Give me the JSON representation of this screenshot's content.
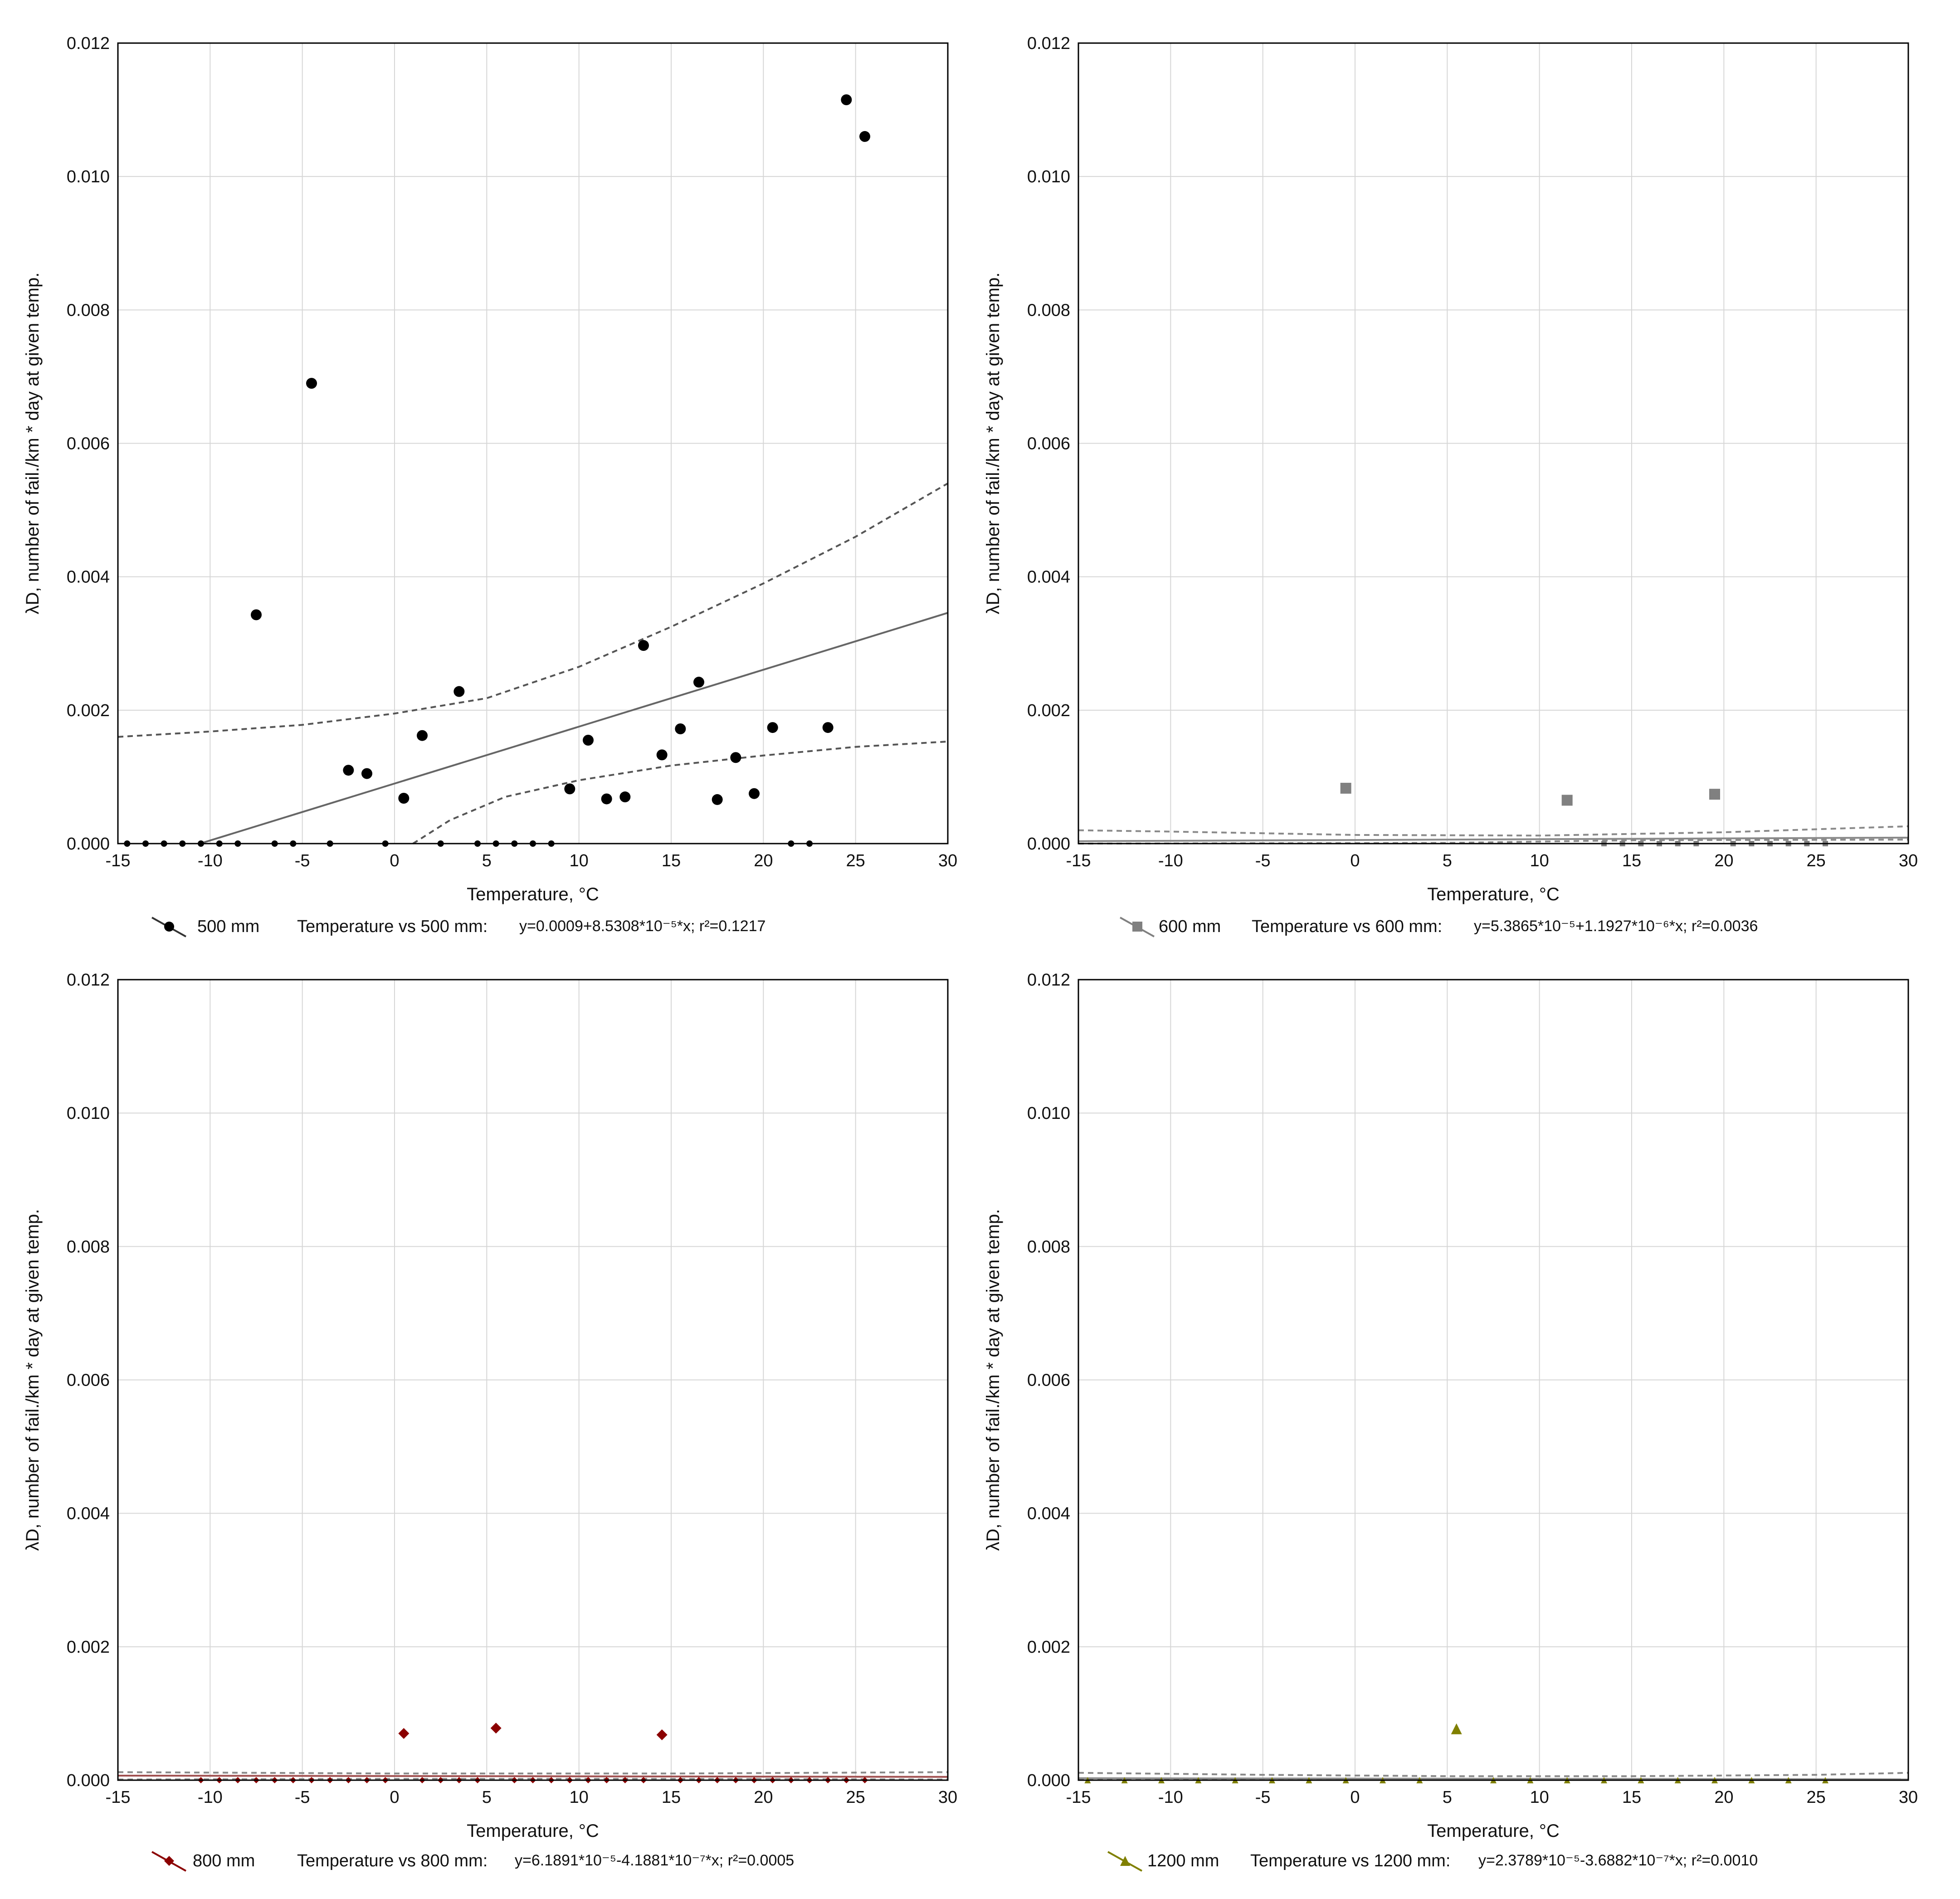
{
  "chart_data": [
    {
      "type": "scatter",
      "panel": "500 mm",
      "xlabel": "Temperature, °C",
      "ylabel": "λD, number of fail./km * day at given temp.",
      "xlim": [
        -15,
        30
      ],
      "ylim": [
        0,
        0.012
      ],
      "xticks": [
        -15,
        -10,
        -5,
        0,
        5,
        10,
        15,
        20,
        25,
        30
      ],
      "yticks": [
        "0.000",
        "0.002",
        "0.004",
        "0.006",
        "0.008",
        "0.010",
        "0.012"
      ],
      "grid": true,
      "marker": "circle",
      "color": "#000000",
      "legend": {
        "series": "500 mm",
        "fit_label": "Temperature vs 500 mm:",
        "equation": "y=0.0009+8.5308*10⁻⁵*x; r²=0.1217"
      },
      "points": [
        [
          -7.5,
          0.00343
        ],
        [
          -4.5,
          0.0069
        ],
        [
          -2.5,
          0.0011
        ],
        [
          -1.5,
          0.00105
        ],
        [
          0.5,
          0.00068
        ],
        [
          1.5,
          0.00162
        ],
        [
          3.5,
          0.00228
        ],
        [
          9.5,
          0.00082
        ],
        [
          10.5,
          0.00155
        ],
        [
          11.5,
          0.00067
        ],
        [
          12.5,
          0.0007
        ],
        [
          13.5,
          0.00297
        ],
        [
          14.5,
          0.00133
        ],
        [
          15.5,
          0.00172
        ],
        [
          16.5,
          0.00242
        ],
        [
          17.5,
          0.00066
        ],
        [
          18.5,
          0.00129
        ],
        [
          19.5,
          0.00075
        ],
        [
          20.5,
          0.00174
        ],
        [
          23.5,
          0.00174
        ],
        [
          24.5,
          0.01115
        ],
        [
          25.5,
          0.0106
        ],
        [
          -14.5,
          0
        ],
        [
          -13.5,
          0
        ],
        [
          -12.5,
          0
        ],
        [
          -11.5,
          0
        ],
        [
          -10.5,
          0
        ],
        [
          -9.5,
          0
        ],
        [
          -8.5,
          0
        ],
        [
          -6.5,
          0
        ],
        [
          -5.5,
          0
        ],
        [
          -3.5,
          0
        ],
        [
          -0.5,
          0
        ],
        [
          2.5,
          0
        ],
        [
          4.5,
          0
        ],
        [
          5.5,
          0
        ],
        [
          6.5,
          0
        ],
        [
          7.5,
          0
        ],
        [
          8.5,
          0
        ],
        [
          21.5,
          0
        ],
        [
          22.5,
          0
        ]
      ],
      "fit": {
        "intercept": 0.0009,
        "slope": 8.5308e-05
      },
      "confidence_upper": [
        [
          -15,
          0.0016
        ],
        [
          -10,
          0.00168
        ],
        [
          -5,
          0.00178
        ],
        [
          0,
          0.00195
        ],
        [
          5,
          0.00218
        ],
        [
          10,
          0.00265
        ],
        [
          15,
          0.00325
        ],
        [
          20,
          0.0039
        ],
        [
          25,
          0.0046
        ],
        [
          30,
          0.0054
        ]
      ],
      "confidence_lower": [
        [
          1,
          0
        ],
        [
          3,
          0.00035
        ],
        [
          6,
          0.0007
        ],
        [
          10,
          0.00095
        ],
        [
          15,
          0.00117
        ],
        [
          20,
          0.00132
        ],
        [
          25,
          0.00145
        ],
        [
          30,
          0.00153
        ]
      ]
    },
    {
      "type": "scatter",
      "panel": "600 mm",
      "xlabel": "Temperature, °C",
      "ylabel": "λD, number of fail./km * day at given temp.",
      "xlim": [
        -15,
        30
      ],
      "ylim": [
        0,
        0.012
      ],
      "xticks": [
        -15,
        -10,
        -5,
        0,
        5,
        10,
        15,
        20,
        25,
        30
      ],
      "yticks": [
        "0.000",
        "0.002",
        "0.004",
        "0.006",
        "0.008",
        "0.010",
        "0.012"
      ],
      "grid": true,
      "marker": "square",
      "color": "#808080",
      "legend": {
        "series": "600 mm",
        "fit_label": "Temperature vs 600 mm:",
        "equation": "y=5.3865*10⁻⁵+1.1927*10⁻⁶*x; r²=0.0036"
      },
      "points": [
        [
          -0.5,
          0.00083
        ],
        [
          11.5,
          0.00065
        ],
        [
          19.5,
          0.00074
        ],
        [
          13.5,
          0
        ],
        [
          14.5,
          0
        ],
        [
          15.5,
          0
        ],
        [
          16.5,
          0
        ],
        [
          17.5,
          0
        ],
        [
          18.5,
          0
        ],
        [
          20.5,
          0
        ],
        [
          21.5,
          0
        ],
        [
          22.5,
          0
        ],
        [
          23.5,
          0
        ],
        [
          24.5,
          0
        ],
        [
          25.5,
          0
        ]
      ],
      "fit": {
        "intercept": 5.3865e-05,
        "slope": 1.1927e-06
      },
      "confidence_upper": [
        [
          -15,
          0.0002
        ],
        [
          -10,
          0.00018
        ],
        [
          0,
          0.00013
        ],
        [
          10,
          0.00012
        ],
        [
          20,
          0.00017
        ],
        [
          30,
          0.00026
        ]
      ],
      "confidence_lower": [
        [
          -15,
          0
        ],
        [
          5,
          1e-05
        ],
        [
          15,
          5e-05
        ],
        [
          30,
          6e-05
        ]
      ]
    },
    {
      "type": "scatter",
      "panel": "800 mm",
      "xlabel": "Temperature, °C",
      "ylabel": "λD, number of fail./km * day at given temp.",
      "xlim": [
        -15,
        30
      ],
      "ylim": [
        0,
        0.012
      ],
      "xticks": [
        -15,
        -10,
        -5,
        0,
        5,
        10,
        15,
        20,
        25,
        30
      ],
      "yticks": [
        "0.000",
        "0.002",
        "0.004",
        "0.006",
        "0.008",
        "0.010",
        "0.012"
      ],
      "grid": true,
      "marker": "diamond",
      "color": "#8b0000",
      "legend": {
        "series": "800 mm",
        "fit_label": "Temperature vs 800 mm:",
        "equation": "y=6.1891*10⁻⁵-4.1881*10⁻⁷*x; r²=0.0005"
      },
      "points": [
        [
          0.5,
          0.0007
        ],
        [
          5.5,
          0.00078
        ],
        [
          14.5,
          0.00068
        ],
        [
          -10.5,
          0
        ],
        [
          -9.5,
          0
        ],
        [
          -8.5,
          0
        ],
        [
          -7.5,
          0
        ],
        [
          -6.5,
          0
        ],
        [
          -5.5,
          0
        ],
        [
          -4.5,
          0
        ],
        [
          -3.5,
          0
        ],
        [
          -2.5,
          0
        ],
        [
          -1.5,
          0
        ],
        [
          -0.5,
          0
        ],
        [
          1.5,
          0
        ],
        [
          2.5,
          0
        ],
        [
          3.5,
          0
        ],
        [
          4.5,
          0
        ],
        [
          6.5,
          0
        ],
        [
          7.5,
          0
        ],
        [
          8.5,
          0
        ],
        [
          9.5,
          0
        ],
        [
          10.5,
          0
        ],
        [
          11.5,
          0
        ],
        [
          12.5,
          0
        ],
        [
          13.5,
          0
        ],
        [
          15.5,
          0
        ],
        [
          16.5,
          0
        ],
        [
          17.5,
          0
        ],
        [
          18.5,
          0
        ],
        [
          19.5,
          0
        ],
        [
          20.5,
          0
        ],
        [
          21.5,
          0
        ],
        [
          22.5,
          0
        ],
        [
          23.5,
          0
        ],
        [
          24.5,
          0
        ],
        [
          25.5,
          0
        ]
      ],
      "fit": {
        "intercept": 6.1891e-05,
        "slope": -4.1881e-07
      },
      "confidence_upper": [
        [
          -15,
          0.00012
        ],
        [
          0,
          0.0001
        ],
        [
          15,
          0.0001
        ],
        [
          30,
          0.00012
        ]
      ],
      "confidence_lower": [
        [
          -15,
          1e-05
        ],
        [
          0,
          2e-05
        ],
        [
          15,
          2e-05
        ],
        [
          30,
          1e-05
        ]
      ]
    },
    {
      "type": "scatter",
      "panel": "1200 mm",
      "xlabel": "Temperature, °C",
      "ylabel": "λD, number of fail./km * day at given temp.",
      "xlim": [
        -15,
        30
      ],
      "ylim": [
        0,
        0.012
      ],
      "xticks": [
        -15,
        -10,
        -5,
        0,
        5,
        10,
        15,
        20,
        25,
        30
      ],
      "yticks": [
        "0.000",
        "0.002",
        "0.004",
        "0.006",
        "0.008",
        "0.010",
        "0.012"
      ],
      "grid": true,
      "marker": "triangle",
      "color": "#808000",
      "legend": {
        "series": "1200 mm",
        "fit_label": "Temperature vs 1200 mm:",
        "equation": "y=2.3789*10⁻⁵-3.6882*10⁻⁷*x; r²=0.0010"
      },
      "points": [
        [
          5.5,
          0.00077
        ],
        [
          -14.5,
          0
        ],
        [
          -12.5,
          0
        ],
        [
          -10.5,
          0
        ],
        [
          -8.5,
          0
        ],
        [
          -6.5,
          0
        ],
        [
          -4.5,
          0
        ],
        [
          -2.5,
          0
        ],
        [
          -0.5,
          0
        ],
        [
          1.5,
          0
        ],
        [
          3.5,
          0
        ],
        [
          7.5,
          0
        ],
        [
          9.5,
          0
        ],
        [
          11.5,
          0
        ],
        [
          13.5,
          0
        ],
        [
          15.5,
          0
        ],
        [
          17.5,
          0
        ],
        [
          19.5,
          0
        ],
        [
          21.5,
          0
        ],
        [
          23.5,
          0
        ],
        [
          25.5,
          0
        ]
      ],
      "fit": {
        "intercept": 2.3789e-05,
        "slope": -3.6882e-07
      },
      "confidence_upper": [
        [
          -15,
          0.00011
        ],
        [
          -5,
          8e-05
        ],
        [
          5,
          6e-05
        ],
        [
          15,
          6e-05
        ],
        [
          25,
          8e-05
        ],
        [
          30,
          0.00011
        ]
      ],
      "confidence_lower": [
        [
          -15,
          1e-05
        ],
        [
          5,
          1e-05
        ],
        [
          30,
          1e-05
        ]
      ]
    }
  ]
}
